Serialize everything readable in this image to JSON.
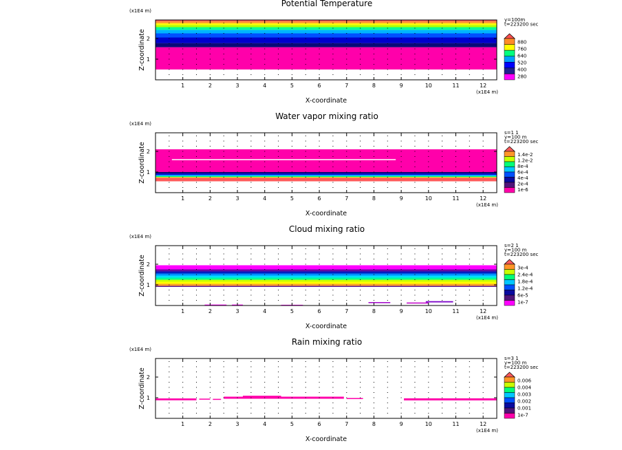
{
  "chart_data": [
    {
      "type": "heatmap",
      "title": "Potential Temperature",
      "xlabel": "X-coordinate",
      "ylabel": "Z-coordinate",
      "x_unit": "(x1E4 m)",
      "z_unit": "(x1E4 m)",
      "xlim": [
        0,
        12.5
      ],
      "ylim": [
        0,
        2.9
      ],
      "x_ticks": [
        "1",
        "2",
        "3",
        "4",
        "5",
        "6",
        "7",
        "8",
        "9",
        "10",
        "11",
        "12"
      ],
      "y_ticks": [
        "1",
        "2"
      ],
      "info": [
        "y=100m",
        "t=223200 sec"
      ],
      "colorbar": {
        "labels": [
          "880",
          "760",
          "640",
          "520",
          "400",
          "280"
        ],
        "colors": [
          "#ff00ff",
          "#20208f",
          "#0000ff",
          "#00a0ff",
          "#00ff80",
          "#ffff00",
          "#ff8c28",
          "#ff5050"
        ]
      },
      "bands": [
        {
          "z0": 0.0,
          "z1": 0.5,
          "color": "#ffffff"
        },
        {
          "z0": 0.5,
          "z1": 1.58,
          "color": "#ff00aa"
        },
        {
          "z0": 1.58,
          "z1": 1.78,
          "color": "#0a0a78"
        },
        {
          "z0": 1.78,
          "z1": 2.05,
          "color": "#0000cc"
        },
        {
          "z0": 2.05,
          "z1": 2.25,
          "color": "#0050ff"
        },
        {
          "z0": 2.25,
          "z1": 2.42,
          "color": "#00b4ff"
        },
        {
          "z0": 2.42,
          "z1": 2.55,
          "color": "#00ff96"
        },
        {
          "z0": 2.55,
          "z1": 2.66,
          "color": "#b4ff00"
        },
        {
          "z0": 2.66,
          "z1": 2.74,
          "color": "#ffff00"
        },
        {
          "z0": 2.74,
          "z1": 2.83,
          "color": "#ff9628"
        },
        {
          "z0": 2.83,
          "z1": 2.9,
          "color": "#ff5a5a"
        }
      ]
    },
    {
      "type": "heatmap",
      "title": "Water vapor mixing ratio",
      "xlabel": "X-coordinate",
      "ylabel": "Z-coordinate",
      "x_unit": "(x1E4 m)",
      "z_unit": "(x1E4 m)",
      "xlim": [
        0,
        12.5
      ],
      "ylim": [
        0,
        2.9
      ],
      "x_ticks": [
        "1",
        "2",
        "3",
        "4",
        "5",
        "6",
        "7",
        "8",
        "9",
        "10",
        "11",
        "12"
      ],
      "y_ticks": [
        "1",
        "2"
      ],
      "info": [
        "s=1 1",
        "y=100 m",
        "t=223200 sec"
      ],
      "colorbar": {
        "labels": [
          "1.4e-2",
          "1.2e-2",
          "8e-4",
          "6e-4",
          "4e-4",
          "2e-4",
          "1e-6"
        ],
        "colors": [
          "#ff00aa",
          "#50147a",
          "#0a0a9f",
          "#0050ff",
          "#00c8ff",
          "#00ff78",
          "#c8ff00",
          "#ff9628",
          "#ff5a5a"
        ]
      },
      "bands": [
        {
          "z0": 0.0,
          "z1": 0.55,
          "color": "#ffffff"
        },
        {
          "z0": 0.55,
          "z1": 0.72,
          "color": "#ff5a5a"
        },
        {
          "z0": 0.72,
          "z1": 0.76,
          "color": "#ffcc00"
        },
        {
          "z0": 0.76,
          "z1": 0.8,
          "color": "#00ff78"
        },
        {
          "z0": 0.8,
          "z1": 0.86,
          "color": "#00b4ff"
        },
        {
          "z0": 0.86,
          "z1": 0.93,
          "color": "#0000cc"
        },
        {
          "z0": 0.93,
          "z1": 1.0,
          "color": "#0a0a78"
        },
        {
          "z0": 1.0,
          "z1": 2.1,
          "color": "#ff00aa"
        },
        {
          "z0": 2.1,
          "z1": 2.9,
          "color": "#ffffff"
        }
      ],
      "streaks": [
        {
          "x0": 0.6,
          "x1": 8.8,
          "z": 1.6,
          "color": "#ffffff",
          "h": 0.05
        }
      ]
    },
    {
      "type": "heatmap",
      "title": "Cloud mixing ratio",
      "xlabel": "X-coordinate",
      "ylabel": "Z-coordinate",
      "x_unit": "(x1E4 m)",
      "z_unit": "(x1E4 m)",
      "xlim": [
        0,
        12.5
      ],
      "ylim": [
        0,
        2.9
      ],
      "x_ticks": [
        "1",
        "2",
        "3",
        "4",
        "5",
        "6",
        "7",
        "8",
        "9",
        "10",
        "11",
        "12"
      ],
      "y_ticks": [
        "1",
        "2"
      ],
      "info": [
        "s=2 1",
        "y=100 m",
        "t=223200 sec"
      ],
      "colorbar": {
        "labels": [
          "3e-4",
          "2.4e-4",
          "1.8e-4",
          "1.2e-4",
          "6e-5",
          "1e-7"
        ],
        "colors": [
          "#ff00ff",
          "#50147a",
          "#0a0a9f",
          "#0050ff",
          "#00c8ff",
          "#00ff78",
          "#c8ff00",
          "#ff9628",
          "#ff5a5a"
        ]
      },
      "bands": [
        {
          "z0": 0.0,
          "z1": 0.9,
          "color": "#ffffff"
        },
        {
          "z0": 0.9,
          "z1": 0.95,
          "color": "#5a1a9a"
        },
        {
          "z0": 0.95,
          "z1": 1.05,
          "color": "#ffa028"
        },
        {
          "z0": 1.05,
          "z1": 1.15,
          "color": "#ffff00"
        },
        {
          "z0": 1.15,
          "z1": 1.25,
          "color": "#c8ff00"
        },
        {
          "z0": 1.25,
          "z1": 1.35,
          "color": "#00ff96"
        },
        {
          "z0": 1.35,
          "z1": 1.45,
          "color": "#00e0ff"
        },
        {
          "z0": 1.45,
          "z1": 1.55,
          "color": "#0090ff"
        },
        {
          "z0": 1.55,
          "z1": 1.65,
          "color": "#0020c0"
        },
        {
          "z0": 1.65,
          "z1": 1.75,
          "color": "#6a0aa0"
        },
        {
          "z0": 1.75,
          "z1": 1.95,
          "color": "#ff00ff"
        },
        {
          "z0": 1.95,
          "z1": 2.9,
          "color": "#ffffff"
        }
      ],
      "streaks": [
        {
          "x0": 7.8,
          "x1": 8.6,
          "z": 0.14,
          "color": "#a000c8",
          "h": 0.05
        },
        {
          "x0": 9.2,
          "x1": 10.0,
          "z": 0.12,
          "color": "#c000c8",
          "h": 0.05
        },
        {
          "x0": 9.9,
          "x1": 10.9,
          "z": 0.18,
          "color": "#7a00c8",
          "h": 0.06
        },
        {
          "x0": 1.8,
          "x1": 2.6,
          "z": 0.03,
          "color": "#ff00ff",
          "h": 0.03
        },
        {
          "x0": 2.8,
          "x1": 3.2,
          "z": 0.03,
          "color": "#ff00ff",
          "h": 0.03
        },
        {
          "x0": 4.6,
          "x1": 5.4,
          "z": 0.02,
          "color": "#ff00ff",
          "h": 0.03
        }
      ]
    },
    {
      "type": "heatmap",
      "title": "Rain mixing ratio",
      "xlabel": "X-coordinate",
      "ylabel": "Z-coordinate",
      "x_unit": "(x1E4 m)",
      "z_unit": "(x1E4 m)",
      "xlim": [
        0,
        12.5
      ],
      "ylim": [
        0,
        2.9
      ],
      "x_ticks": [
        "1",
        "2",
        "3",
        "4",
        "5",
        "6",
        "7",
        "8",
        "9",
        "10",
        "11",
        "12"
      ],
      "y_ticks": [
        "1",
        "2"
      ],
      "info": [
        "s=3 1",
        "y=100 m",
        "t=223200 sec"
      ],
      "colorbar": {
        "labels": [
          "0.006",
          "0.004",
          "0.003",
          "0.002",
          "0.001",
          "1e-7"
        ],
        "colors": [
          "#ff00aa",
          "#50147a",
          "#0a0a9f",
          "#0050ff",
          "#00c8ff",
          "#00ff78",
          "#c8ff00",
          "#ff9628",
          "#ff5a5a"
        ]
      },
      "bands": [],
      "streaks": [
        {
          "x0": 0.0,
          "x1": 1.5,
          "z": 0.92,
          "color": "#ff00aa",
          "h": 0.09
        },
        {
          "x0": 1.6,
          "x1": 2.0,
          "z": 0.93,
          "color": "#ff00aa",
          "h": 0.05
        },
        {
          "x0": 2.1,
          "x1": 2.4,
          "z": 0.92,
          "color": "#ff00aa",
          "h": 0.05
        },
        {
          "x0": 2.5,
          "x1": 6.9,
          "z": 1.0,
          "color": "#ff00aa",
          "h": 0.1
        },
        {
          "x0": 3.2,
          "x1": 4.6,
          "z": 1.07,
          "color": "#ff00aa",
          "h": 0.05
        },
        {
          "x0": 7.0,
          "x1": 7.6,
          "z": 0.96,
          "color": "#ff00aa",
          "h": 0.05
        },
        {
          "x0": 9.1,
          "x1": 12.5,
          "z": 0.92,
          "color": "#ff00aa",
          "h": 0.1
        }
      ]
    }
  ]
}
